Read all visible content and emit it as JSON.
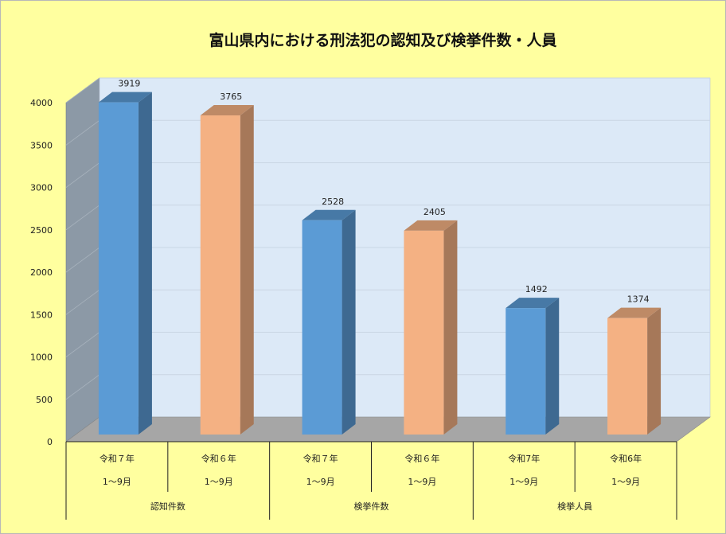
{
  "chart_data": {
    "type": "bar",
    "title": "富山県内における刑法犯の認知及び検挙件数・人員",
    "ylim": [
      0,
      4000
    ],
    "yticks": [
      0,
      500,
      1000,
      1500,
      2000,
      2500,
      3000,
      3500,
      4000
    ],
    "grid": true,
    "legend": "none",
    "groups": [
      "認知件数",
      "検挙件数",
      "検挙人員"
    ],
    "categories": [
      {
        "line1": "令和７年",
        "line2": "1～9月",
        "group": 0
      },
      {
        "line1": "令和６年",
        "line2": "1～9月",
        "group": 0
      },
      {
        "line1": "令和７年",
        "line2": "1～9月",
        "group": 1
      },
      {
        "line1": "令和６年",
        "line2": "1～9月",
        "group": 1
      },
      {
        "line1": "令和7年",
        "line2": "1～9月",
        "group": 2
      },
      {
        "line1": "令和6年",
        "line2": "1～9月",
        "group": 2
      }
    ],
    "values": [
      3919,
      3765,
      2528,
      2405,
      1492,
      1374
    ],
    "colors": {
      "r7": "#5b9bd5",
      "r6": "#f4b183",
      "background": "#ffff9f",
      "plot_back": "#dce9f7",
      "side_wall": "#8c99a6",
      "floor": "#a6a6a6"
    }
  }
}
